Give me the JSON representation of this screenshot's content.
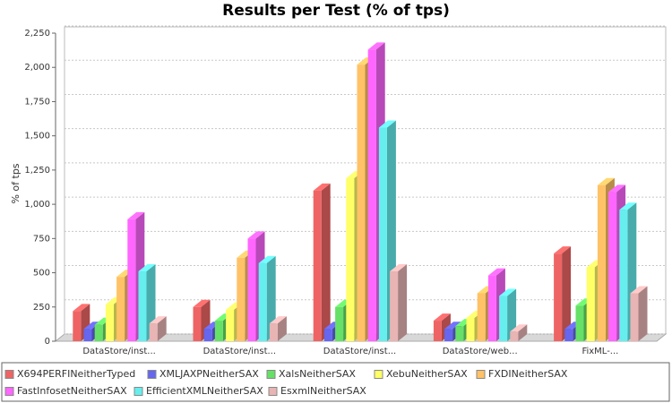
{
  "chart_data": {
    "type": "bar3d",
    "title": "Results per Test (% of tps)",
    "y_label": "% of tps",
    "categories": [
      "DataStore/inst...",
      "DataStore/inst...",
      "DataStore/inst...",
      "DataStore/web...",
      "FixML-..."
    ],
    "series": [
      {
        "name": "X694PERFINeitherTyped",
        "color": "#ee6464",
        "values": [
          220,
          250,
          1100,
          150,
          640
        ]
      },
      {
        "name": "XMLJAXPNeitherSAX",
        "color": "#6666ee",
        "values": [
          90,
          90,
          90,
          90,
          90
        ]
      },
      {
        "name": "XalsNeitherSAX",
        "color": "#66e066",
        "values": [
          120,
          150,
          250,
          110,
          260
        ]
      },
      {
        "name": "XebuNeitherSAX",
        "color": "#ffff66",
        "values": [
          270,
          230,
          1190,
          170,
          540
        ]
      },
      {
        "name": "FXDINeitherSAX",
        "color": "#ffc266",
        "values": [
          470,
          610,
          2020,
          350,
          1140
        ]
      },
      {
        "name": "FastInfosetNeitherSAX",
        "color": "#ff66ff",
        "values": [
          890,
          750,
          2130,
          480,
          1090
        ]
      },
      {
        "name": "EfficientXMLNeitherSAX",
        "color": "#66eeee",
        "values": [
          510,
          570,
          1560,
          330,
          960
        ]
      },
      {
        "name": "EsxmlNeitherSAX",
        "color": "#e8b4b4",
        "values": [
          130,
          130,
          510,
          70,
          350
        ]
      }
    ],
    "ylim": [
      0,
      2250
    ],
    "yticks": [
      0,
      250,
      500,
      750,
      {
        "value": 1000,
        "label": "1,000"
      },
      {
        "value": 1250,
        "label": "1,250"
      },
      {
        "value": 1500,
        "label": "1,500"
      },
      {
        "value": 1750,
        "label": "1,750"
      },
      {
        "value": 2000,
        "label": "2,000"
      },
      {
        "value": 2250,
        "label": "2,250"
      }
    ],
    "grid": true
  }
}
